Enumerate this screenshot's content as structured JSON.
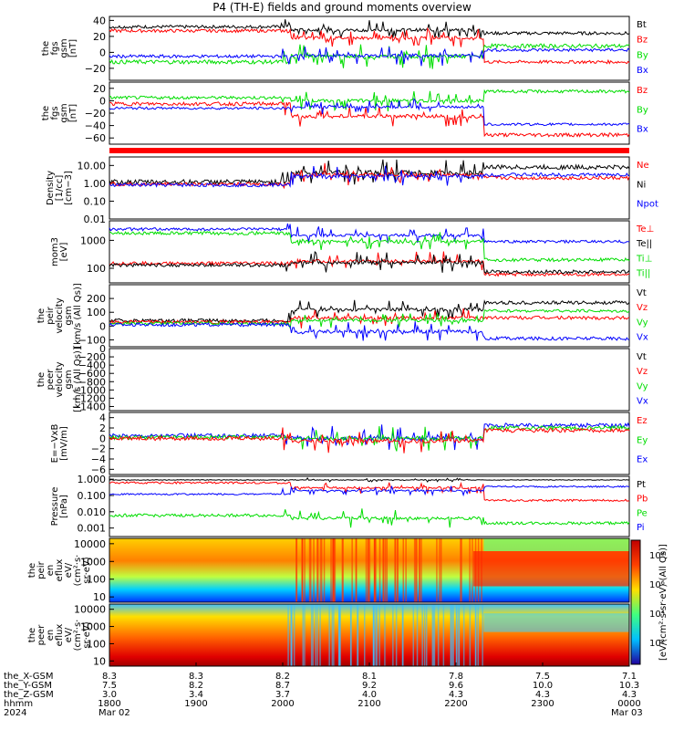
{
  "title": "P4 (TH-E) fields and ground moments overview",
  "colors": {
    "black": "#000000",
    "red": "#ff0000",
    "green": "#00dd00",
    "blue": "#0000ff"
  },
  "chart_data": {
    "type": "line",
    "x_axis": {
      "ticks": [
        "1800",
        "1900",
        "2000",
        "2100",
        "2200",
        "2300",
        "0000"
      ],
      "dates": {
        "1800": "Mar 02",
        "0000": "Mar 03"
      },
      "rows": [
        {
          "label": "the_X-GSM",
          "values": [
            "8.3",
            "8.3",
            "8.2",
            "8.1",
            "7.8",
            "7.5",
            "7.1"
          ]
        },
        {
          "label": "the_Y-GSM",
          "values": [
            "7.5",
            "8.2",
            "8.7",
            "9.2",
            "9.6",
            "10.0",
            "10.3"
          ]
        },
        {
          "label": "the_Z-GSM",
          "values": [
            "3.0",
            "3.4",
            "3.7",
            "4.0",
            "4.3",
            "4.3",
            "4.3"
          ]
        },
        {
          "label": "hhmm",
          "values": [
            "1800",
            "1900",
            "2000",
            "2100",
            "2200",
            "2300",
            "0000"
          ]
        }
      ],
      "year_label": "2024"
    },
    "panels": [
      {
        "ylabel": [
          "the",
          "fgs",
          "gsm",
          "[nT]"
        ],
        "yticks": [
          "40",
          "20",
          "0",
          "−20"
        ],
        "ylim": [
          -35,
          45
        ],
        "legend": [
          {
            "text": "Bt",
            "color": "black"
          },
          {
            "text": "Bz",
            "color": "red"
          },
          {
            "text": "By",
            "color": "green"
          },
          {
            "text": "Bx",
            "color": "blue"
          }
        ]
      },
      {
        "ylabel": [
          "the",
          "fgs",
          "gsm",
          "[nT]"
        ],
        "yticks": [
          "20",
          "0",
          "−20",
          "−40",
          "−60"
        ],
        "ylim": [
          -70,
          30
        ],
        "legend": [
          {
            "text": "Bz",
            "color": "red"
          },
          {
            "text": "By",
            "color": "green"
          },
          {
            "text": "Bx",
            "color": "blue"
          }
        ]
      },
      {
        "ylabel": [
          "Density",
          "[1/cc]",
          "[cm−3]"
        ],
        "yticks": [
          "10.00",
          "1.00",
          "0.10",
          "0.01"
        ],
        "ylim": [
          0.01,
          30
        ],
        "log": true,
        "legend": [
          {
            "text": "Ne",
            "color": "red"
          },
          {
            "text": "Ni",
            "color": "black"
          },
          {
            "text": "Npot",
            "color": "blue"
          }
        ]
      },
      {
        "ylabel": [
          "mom3",
          "[eV]"
        ],
        "yticks": [
          "1000",
          "100"
        ],
        "ylim": [
          30,
          5000
        ],
        "log": true,
        "legend": [
          {
            "text": "Te⊥",
            "color": "red"
          },
          {
            "text": "Te||",
            "color": "black"
          },
          {
            "text": "Ti⊥",
            "color": "green"
          },
          {
            "text": "Ti||",
            "color": "green"
          }
        ]
      },
      {
        "ylabel": [
          "the",
          "peir",
          "velocity",
          "gsm",
          "[km/s (All Qs)]"
        ],
        "yticks": [
          "200",
          "100",
          "0",
          "−100"
        ],
        "ylim": [
          -150,
          300
        ],
        "legend": [
          {
            "text": "Vt",
            "color": "black"
          },
          {
            "text": "Vz",
            "color": "red"
          },
          {
            "text": "Vy",
            "color": "green"
          },
          {
            "text": "Vx",
            "color": "blue"
          }
        ]
      },
      {
        "ylabel": [
          "the",
          "peer",
          "velocity",
          "gsm",
          "[km/s (All Qs)]"
        ],
        "yticks": [
          "0",
          "−200",
          "−400",
          "−600",
          "−800",
          "−1000",
          "−1200",
          "−1400"
        ],
        "ylim": [
          -1500,
          0
        ],
        "legend": [
          {
            "text": "Vt",
            "color": "black"
          },
          {
            "text": "Vz",
            "color": "red"
          },
          {
            "text": "Vy",
            "color": "green"
          },
          {
            "text": "Vx",
            "color": "blue"
          }
        ]
      },
      {
        "ylabel": [
          "E=−VxB",
          "[mV/m]"
        ],
        "yticks": [
          "4",
          "2",
          "0",
          "−2",
          "−4",
          "−6"
        ],
        "ylim": [
          -7,
          5
        ],
        "legend": [
          {
            "text": "Ez",
            "color": "red"
          },
          {
            "text": "Ey",
            "color": "green"
          },
          {
            "text": "Ex",
            "color": "blue"
          }
        ]
      },
      {
        "ylabel": [
          "Pressure",
          "[nPa]"
        ],
        "yticks": [
          "1.000",
          "0.100",
          "0.010",
          "0.001"
        ],
        "ylim": [
          0.0003,
          1.5
        ],
        "log": true,
        "legend": [
          {
            "text": "Pt",
            "color": "black"
          },
          {
            "text": "Pb",
            "color": "red"
          },
          {
            "text": "Pe",
            "color": "green"
          },
          {
            "text": "Pi",
            "color": "blue"
          }
        ]
      },
      {
        "ylabel": [
          "the",
          "peir",
          "en",
          "eflux",
          "eV/",
          "(cm²·s·",
          "sr·eV)"
        ],
        "yticks": [
          "10000",
          "1000",
          "100",
          "10"
        ],
        "ylim": [
          5,
          20000
        ],
        "log": true,
        "spectrogram": true
      },
      {
        "ylabel": [
          "the",
          "peer",
          "en",
          "eflux",
          "eV/",
          "(cm²·s·",
          "sr·eV)"
        ],
        "yticks": [
          "10000",
          "1000",
          "100",
          "10"
        ],
        "ylim": [
          5,
          20000
        ],
        "log": true,
        "spectrogram": true
      }
    ],
    "colorbar": {
      "ticks": [
        "10⁸",
        "10⁶",
        "10⁴",
        "10²"
      ],
      "label": "[eV/(cm²·s·sr·eV) (All Qs)]"
    }
  }
}
